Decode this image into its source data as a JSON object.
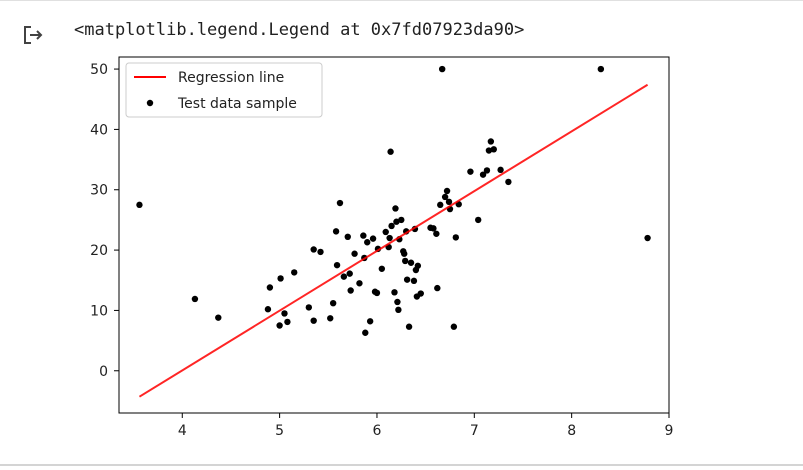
{
  "output": {
    "text": "<matplotlib.legend.Legend at 0x7fd07923da90>",
    "icon": "output-arrow-icon"
  },
  "chart_data": {
    "type": "scatter",
    "title": "",
    "xlabel": "",
    "ylabel": "",
    "xlim": [
      3.35,
      9.0
    ],
    "ylim": [
      -7,
      52
    ],
    "xticks": [
      4,
      5,
      6,
      7,
      8,
      9
    ],
    "yticks": [
      0,
      10,
      20,
      30,
      40,
      50
    ],
    "grid": false,
    "legend_position": "upper-left",
    "series": [
      {
        "name": "Regression line",
        "type": "line",
        "color": "#ff0000",
        "x": [
          3.56,
          8.78
        ],
        "y": [
          -4.3,
          47.4
        ]
      },
      {
        "name": "Test data sample",
        "type": "scatter",
        "color": "#000000",
        "x": [
          3.56,
          4.13,
          4.37,
          4.88,
          4.9,
          5.0,
          5.01,
          5.05,
          5.08,
          5.15,
          5.3,
          5.35,
          5.35,
          5.42,
          5.52,
          5.55,
          5.58,
          5.59,
          5.62,
          5.66,
          5.7,
          5.72,
          5.73,
          5.77,
          5.82,
          5.86,
          5.87,
          5.88,
          5.9,
          5.93,
          5.96,
          5.98,
          6.0,
          6.01,
          6.05,
          6.09,
          6.12,
          6.13,
          6.14,
          6.15,
          6.18,
          6.19,
          6.2,
          6.21,
          6.22,
          6.23,
          6.25,
          6.27,
          6.28,
          6.29,
          6.3,
          6.31,
          6.33,
          6.35,
          6.38,
          6.39,
          6.4,
          6.41,
          6.42,
          6.45,
          6.55,
          6.58,
          6.61,
          6.62,
          6.65,
          6.67,
          6.7,
          6.72,
          6.74,
          6.75,
          6.79,
          6.81,
          6.84,
          6.96,
          7.04,
          7.09,
          7.13,
          7.15,
          7.17,
          7.2,
          7.27,
          7.35,
          8.3,
          8.78
        ],
        "y": [
          27.5,
          11.9,
          8.8,
          10.2,
          13.8,
          7.5,
          15.3,
          9.5,
          8.1,
          16.3,
          10.5,
          20.1,
          8.3,
          19.7,
          8.7,
          11.2,
          23.1,
          17.5,
          27.8,
          15.6,
          22.2,
          16.1,
          13.3,
          19.4,
          14.5,
          22.4,
          18.7,
          6.3,
          21.3,
          8.2,
          21.9,
          13.1,
          12.9,
          20.2,
          16.9,
          23.0,
          20.5,
          22.0,
          36.3,
          24.0,
          13.0,
          26.9,
          24.7,
          11.4,
          10.1,
          21.8,
          25.0,
          19.8,
          19.4,
          18.2,
          23.1,
          15.1,
          7.3,
          17.9,
          14.9,
          23.5,
          16.7,
          12.3,
          17.4,
          12.8,
          23.7,
          23.6,
          22.7,
          13.7,
          27.5,
          50.0,
          28.8,
          29.8,
          28.0,
          26.8,
          7.3,
          22.1,
          27.6,
          33.0,
          25.0,
          32.5,
          33.2,
          36.5,
          38.0,
          36.7,
          33.3,
          31.3,
          50.0,
          22.0
        ]
      }
    ]
  }
}
